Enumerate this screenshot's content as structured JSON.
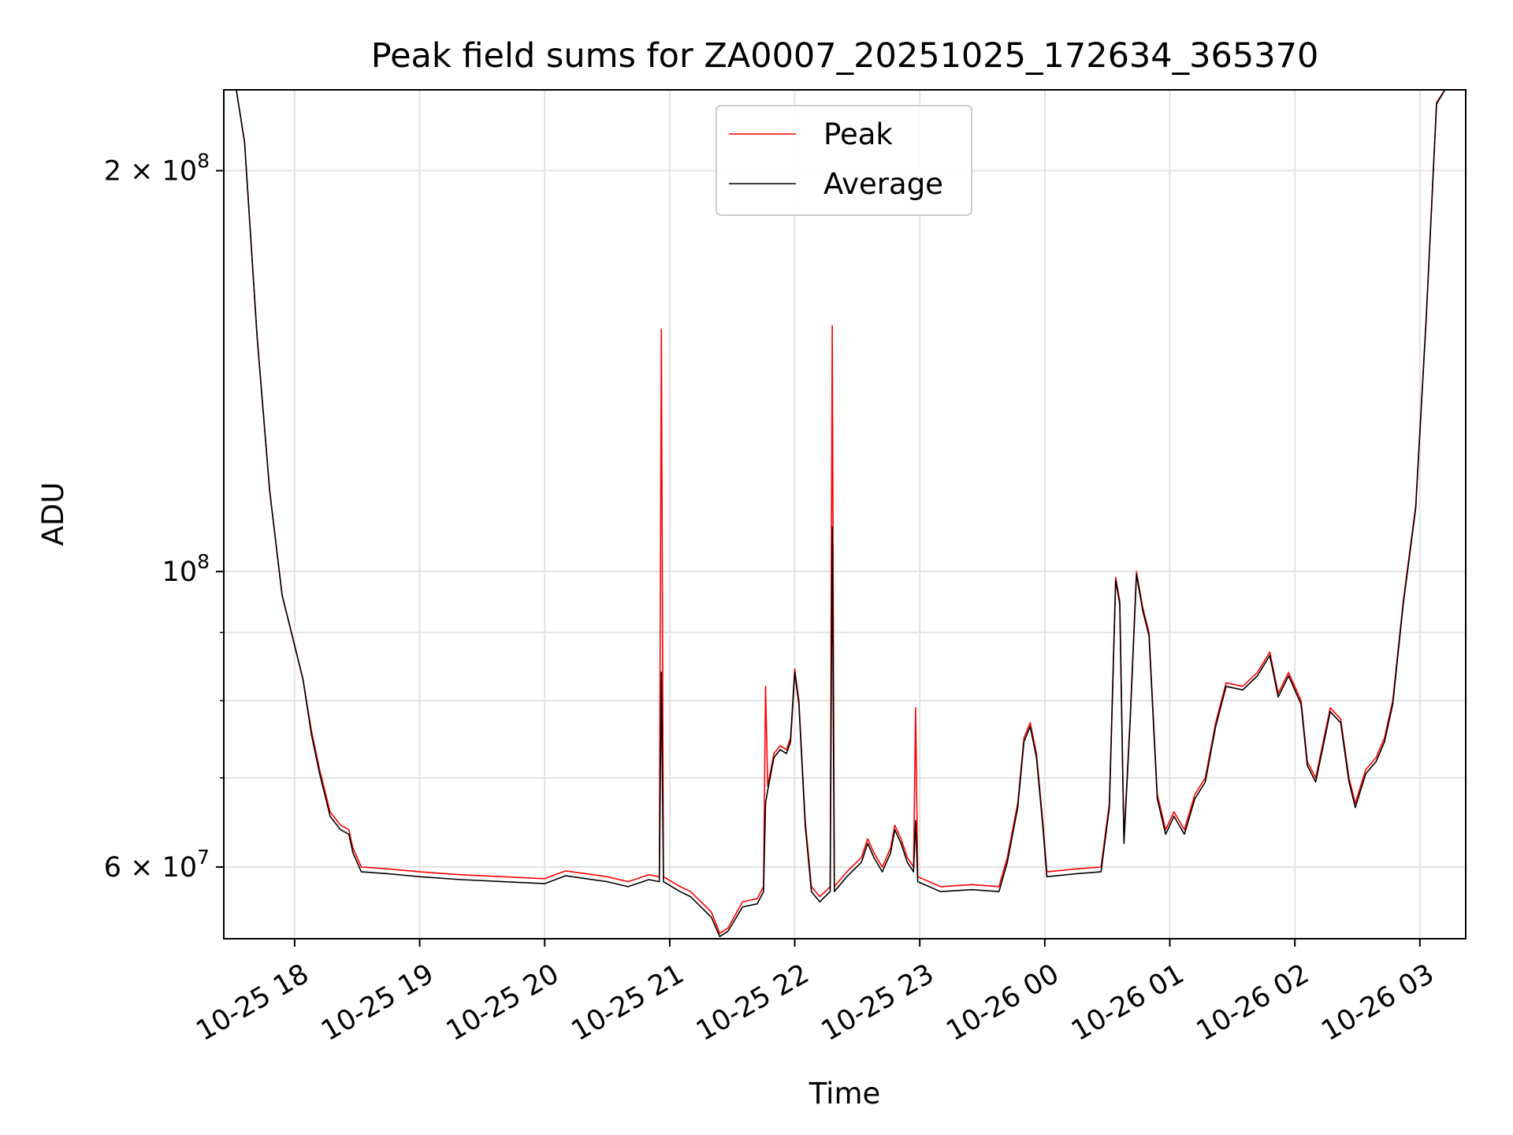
{
  "chart_data": {
    "type": "line",
    "title": "Peak field sums for ZA0007_20251025_172634_365370",
    "xlabel": "Time",
    "ylabel": "ADU",
    "yscale": "log",
    "ylim": [
      53000000,
      230000000
    ],
    "xlim": [
      "2025-10-25 17:26",
      "2025-10-26 03:22"
    ],
    "grid": true,
    "legend": {
      "placement": "top-center"
    },
    "x_ticks": [
      {
        "t": "2025-10-25 18:00",
        "label": "10-25 18"
      },
      {
        "t": "2025-10-25 19:00",
        "label": "10-25 19"
      },
      {
        "t": "2025-10-25 20:00",
        "label": "10-25 20"
      },
      {
        "t": "2025-10-25 21:00",
        "label": "10-25 21"
      },
      {
        "t": "2025-10-25 22:00",
        "label": "10-25 22"
      },
      {
        "t": "2025-10-25 23:00",
        "label": "10-25 23"
      },
      {
        "t": "2025-10-26 00:00",
        "label": "10-26 00"
      },
      {
        "t": "2025-10-26 01:00",
        "label": "10-26 01"
      },
      {
        "t": "2025-10-26 02:00",
        "label": "10-26 02"
      },
      {
        "t": "2025-10-26 03:00",
        "label": "10-26 03"
      }
    ],
    "y_ticks_major": [
      {
        "v": 60000000,
        "label": "6 × 10",
        "exp": "7"
      },
      {
        "v": 100000000,
        "label": "10",
        "exp": "8"
      },
      {
        "v": 200000000,
        "label": "2 × 10",
        "exp": "8"
      }
    ],
    "y_gridlines_minor": [
      70000000,
      80000000,
      90000000
    ],
    "series": [
      {
        "name": "Peak",
        "color": "#ff0000",
        "points": [
          [
            "2025-10-25 17:26",
            230000000
          ],
          [
            "2025-10-25 17:32",
            230000000
          ],
          [
            "2025-10-25 17:36",
            210000000
          ],
          [
            "2025-10-25 17:42",
            150000000
          ],
          [
            "2025-10-25 17:48",
            115000000
          ],
          [
            "2025-10-25 17:54",
            96000000
          ],
          [
            "2025-10-25 18:00",
            88000000
          ],
          [
            "2025-10-25 18:04",
            83000000
          ],
          [
            "2025-10-25 18:08",
            76000000
          ],
          [
            "2025-10-25 18:12",
            71000000
          ],
          [
            "2025-10-25 18:17",
            66000000
          ],
          [
            "2025-10-25 18:22",
            64500000
          ],
          [
            "2025-10-25 18:26",
            64000000
          ],
          [
            "2025-10-25 18:28",
            62000000
          ],
          [
            "2025-10-25 18:32",
            60000000
          ],
          [
            "2025-10-25 18:45",
            59800000
          ],
          [
            "2025-10-25 19:00",
            59500000
          ],
          [
            "2025-10-25 19:20",
            59200000
          ],
          [
            "2025-10-25 19:40",
            59000000
          ],
          [
            "2025-10-25 20:00",
            58800000
          ],
          [
            "2025-10-25 20:10",
            59600000
          ],
          [
            "2025-10-25 20:30",
            59000000
          ],
          [
            "2025-10-25 20:40",
            58500000
          ],
          [
            "2025-10-25 20:50",
            59200000
          ],
          [
            "2025-10-25 20:55",
            59000000
          ],
          [
            "2025-10-25 20:56",
            152000000
          ],
          [
            "2025-10-25 20:57",
            59000000
          ],
          [
            "2025-10-25 21:05",
            58000000
          ],
          [
            "2025-10-25 21:10",
            57500000
          ],
          [
            "2025-10-25 21:15",
            56500000
          ],
          [
            "2025-10-25 21:20",
            55500000
          ],
          [
            "2025-10-25 21:24",
            53500000
          ],
          [
            "2025-10-25 21:28",
            54000000
          ],
          [
            "2025-10-25 21:35",
            56500000
          ],
          [
            "2025-10-25 21:42",
            56800000
          ],
          [
            "2025-10-25 21:45",
            58000000
          ],
          [
            "2025-10-25 21:46",
            82000000
          ],
          [
            "2025-10-25 21:47",
            69000000
          ],
          [
            "2025-10-25 21:50",
            73000000
          ],
          [
            "2025-10-25 21:53",
            74000000
          ],
          [
            "2025-10-25 21:56",
            73500000
          ],
          [
            "2025-10-25 21:58",
            75000000
          ],
          [
            "2025-10-25 22:00",
            84500000
          ],
          [
            "2025-10-25 22:02",
            80000000
          ],
          [
            "2025-10-25 22:05",
            65000000
          ],
          [
            "2025-10-25 22:08",
            58000000
          ],
          [
            "2025-10-25 22:12",
            57000000
          ],
          [
            "2025-10-25 22:17",
            58000000
          ],
          [
            "2025-10-25 22:18",
            153000000
          ],
          [
            "2025-10-25 22:19",
            58000000
          ],
          [
            "2025-10-25 22:25",
            59500000
          ],
          [
            "2025-10-25 22:32",
            61000000
          ],
          [
            "2025-10-25 22:35",
            63000000
          ],
          [
            "2025-10-25 22:38",
            61500000
          ],
          [
            "2025-10-25 22:42",
            60000000
          ],
          [
            "2025-10-25 22:46",
            62000000
          ],
          [
            "2025-10-25 22:48",
            64500000
          ],
          [
            "2025-10-25 22:51",
            63000000
          ],
          [
            "2025-10-25 22:54",
            61000000
          ],
          [
            "2025-10-25 22:57",
            60000000
          ],
          [
            "2025-10-25 22:58",
            79000000
          ],
          [
            "2025-10-25 22:59",
            59000000
          ],
          [
            "2025-10-25 23:10",
            58000000
          ],
          [
            "2025-10-25 23:25",
            58200000
          ],
          [
            "2025-10-25 23:38",
            58000000
          ],
          [
            "2025-10-25 23:42",
            61000000
          ],
          [
            "2025-10-25 23:47",
            67000000
          ],
          [
            "2025-10-25 23:50",
            75000000
          ],
          [
            "2025-10-25 23:53",
            77000000
          ],
          [
            "2025-10-25 23:56",
            73000000
          ],
          [
            "2025-10-25 23:59",
            65000000
          ],
          [
            "2025-10-26 00:01",
            59500000
          ],
          [
            "2025-10-26 00:15",
            59800000
          ],
          [
            "2025-10-26 00:27",
            60000000
          ],
          [
            "2025-10-26 00:31",
            67000000
          ],
          [
            "2025-10-26 00:34",
            99000000
          ],
          [
            "2025-10-26 00:36",
            95000000
          ],
          [
            "2025-10-26 00:38",
            63000000
          ],
          [
            "2025-10-26 00:41",
            78000000
          ],
          [
            "2025-10-26 00:44",
            100000000
          ],
          [
            "2025-10-26 00:47",
            94000000
          ],
          [
            "2025-10-26 00:50",
            90000000
          ],
          [
            "2025-10-26 00:54",
            68000000
          ],
          [
            "2025-10-26 00:58",
            64000000
          ],
          [
            "2025-10-26 01:02",
            66000000
          ],
          [
            "2025-10-26 01:07",
            64000000
          ],
          [
            "2025-10-26 01:12",
            68000000
          ],
          [
            "2025-10-26 01:17",
            70000000
          ],
          [
            "2025-10-26 01:22",
            77000000
          ],
          [
            "2025-10-26 01:27",
            82500000
          ],
          [
            "2025-10-26 01:35",
            82000000
          ],
          [
            "2025-10-26 01:42",
            84000000
          ],
          [
            "2025-10-26 01:48",
            87000000
          ],
          [
            "2025-10-26 01:52",
            81000000
          ],
          [
            "2025-10-26 01:57",
            84000000
          ],
          [
            "2025-10-26 02:03",
            80000000
          ],
          [
            "2025-10-26 02:06",
            72000000
          ],
          [
            "2025-10-26 02:10",
            70000000
          ],
          [
            "2025-10-26 02:14",
            75000000
          ],
          [
            "2025-10-26 02:17",
            79000000
          ],
          [
            "2025-10-26 02:22",
            77500000
          ],
          [
            "2025-10-26 02:26",
            70000000
          ],
          [
            "2025-10-26 02:29",
            67000000
          ],
          [
            "2025-10-26 02:34",
            71000000
          ],
          [
            "2025-10-26 02:39",
            72500000
          ],
          [
            "2025-10-26 02:43",
            75000000
          ],
          [
            "2025-10-26 02:47",
            80000000
          ],
          [
            "2025-10-26 02:52",
            95000000
          ],
          [
            "2025-10-26 02:58",
            112000000
          ],
          [
            "2025-10-26 03:03",
            155000000
          ],
          [
            "2025-10-26 03:08",
            225000000
          ],
          [
            "2025-10-26 03:12",
            230000000
          ],
          [
            "2025-10-26 03:22",
            230000000
          ]
        ]
      },
      {
        "name": "Average",
        "color": "#000000",
        "points": [
          [
            "2025-10-25 17:26",
            230000000
          ],
          [
            "2025-10-25 17:32",
            230000000
          ],
          [
            "2025-10-25 17:36",
            210000000
          ],
          [
            "2025-10-25 17:42",
            150000000
          ],
          [
            "2025-10-25 17:48",
            115000000
          ],
          [
            "2025-10-25 17:54",
            96000000
          ],
          [
            "2025-10-25 18:00",
            88000000
          ],
          [
            "2025-10-25 18:04",
            83000000
          ],
          [
            "2025-10-25 18:08",
            75500000
          ],
          [
            "2025-10-25 18:12",
            70500000
          ],
          [
            "2025-10-25 18:17",
            65500000
          ],
          [
            "2025-10-25 18:22",
            64000000
          ],
          [
            "2025-10-25 18:26",
            63500000
          ],
          [
            "2025-10-25 18:28",
            61500000
          ],
          [
            "2025-10-25 18:32",
            59500000
          ],
          [
            "2025-10-25 18:45",
            59300000
          ],
          [
            "2025-10-25 19:00",
            59000000
          ],
          [
            "2025-10-25 19:20",
            58700000
          ],
          [
            "2025-10-25 19:40",
            58500000
          ],
          [
            "2025-10-25 20:00",
            58300000
          ],
          [
            "2025-10-25 20:10",
            59100000
          ],
          [
            "2025-10-25 20:30",
            58500000
          ],
          [
            "2025-10-25 20:40",
            58000000
          ],
          [
            "2025-10-25 20:50",
            58700000
          ],
          [
            "2025-10-25 20:55",
            58500000
          ],
          [
            "2025-10-25 20:56",
            84000000
          ],
          [
            "2025-10-25 20:57",
            58500000
          ],
          [
            "2025-10-25 21:05",
            57500000
          ],
          [
            "2025-10-25 21:10",
            57000000
          ],
          [
            "2025-10-25 21:15",
            56000000
          ],
          [
            "2025-10-25 21:20",
            55000000
          ],
          [
            "2025-10-25 21:24",
            53200000
          ],
          [
            "2025-10-25 21:28",
            53700000
          ],
          [
            "2025-10-25 21:35",
            56000000
          ],
          [
            "2025-10-25 21:42",
            56300000
          ],
          [
            "2025-10-25 21:45",
            57500000
          ],
          [
            "2025-10-25 21:46",
            67000000
          ],
          [
            "2025-10-25 21:47",
            68500000
          ],
          [
            "2025-10-25 21:50",
            72500000
          ],
          [
            "2025-10-25 21:53",
            73500000
          ],
          [
            "2025-10-25 21:56",
            73000000
          ],
          [
            "2025-10-25 21:58",
            74500000
          ],
          [
            "2025-10-25 22:00",
            84000000
          ],
          [
            "2025-10-25 22:02",
            79500000
          ],
          [
            "2025-10-25 22:05",
            64500000
          ],
          [
            "2025-10-25 22:08",
            57500000
          ],
          [
            "2025-10-25 22:12",
            56500000
          ],
          [
            "2025-10-25 22:17",
            57500000
          ],
          [
            "2025-10-25 22:18",
            108000000
          ],
          [
            "2025-10-25 22:19",
            57500000
          ],
          [
            "2025-10-25 22:25",
            59000000
          ],
          [
            "2025-10-25 22:32",
            60500000
          ],
          [
            "2025-10-25 22:35",
            62500000
          ],
          [
            "2025-10-25 22:38",
            61000000
          ],
          [
            "2025-10-25 22:42",
            59500000
          ],
          [
            "2025-10-25 22:46",
            61500000
          ],
          [
            "2025-10-25 22:48",
            64000000
          ],
          [
            "2025-10-25 22:51",
            62500000
          ],
          [
            "2025-10-25 22:54",
            60500000
          ],
          [
            "2025-10-25 22:57",
            59500000
          ],
          [
            "2025-10-25 22:58",
            65000000
          ],
          [
            "2025-10-25 22:59",
            58500000
          ],
          [
            "2025-10-25 23:10",
            57500000
          ],
          [
            "2025-10-25 23:25",
            57700000
          ],
          [
            "2025-10-25 23:38",
            57500000
          ],
          [
            "2025-10-25 23:42",
            60500000
          ],
          [
            "2025-10-25 23:47",
            66500000
          ],
          [
            "2025-10-25 23:50",
            74500000
          ],
          [
            "2025-10-25 23:53",
            76500000
          ],
          [
            "2025-10-25 23:56",
            72500000
          ],
          [
            "2025-10-25 23:59",
            64500000
          ],
          [
            "2025-10-26 00:01",
            59000000
          ],
          [
            "2025-10-26 00:15",
            59300000
          ],
          [
            "2025-10-26 00:27",
            59500000
          ],
          [
            "2025-10-26 00:31",
            66500000
          ],
          [
            "2025-10-26 00:34",
            98500000
          ],
          [
            "2025-10-26 00:36",
            94500000
          ],
          [
            "2025-10-26 00:38",
            62500000
          ],
          [
            "2025-10-26 00:41",
            77500000
          ],
          [
            "2025-10-26 00:44",
            99500000
          ],
          [
            "2025-10-26 00:47",
            93500000
          ],
          [
            "2025-10-26 00:50",
            89500000
          ],
          [
            "2025-10-26 00:54",
            67500000
          ],
          [
            "2025-10-26 00:58",
            63500000
          ],
          [
            "2025-10-26 01:02",
            65500000
          ],
          [
            "2025-10-26 01:07",
            63500000
          ],
          [
            "2025-10-26 01:12",
            67500000
          ],
          [
            "2025-10-26 01:17",
            69500000
          ],
          [
            "2025-10-26 01:22",
            76500000
          ],
          [
            "2025-10-26 01:27",
            82000000
          ],
          [
            "2025-10-26 01:35",
            81500000
          ],
          [
            "2025-10-26 01:42",
            83500000
          ],
          [
            "2025-10-26 01:48",
            86500000
          ],
          [
            "2025-10-26 01:52",
            80500000
          ],
          [
            "2025-10-26 01:57",
            83500000
          ],
          [
            "2025-10-26 02:03",
            79500000
          ],
          [
            "2025-10-26 02:06",
            71500000
          ],
          [
            "2025-10-26 02:10",
            69500000
          ],
          [
            "2025-10-26 02:14",
            74500000
          ],
          [
            "2025-10-26 02:17",
            78500000
          ],
          [
            "2025-10-26 02:22",
            77000000
          ],
          [
            "2025-10-26 02:26",
            69500000
          ],
          [
            "2025-10-26 02:29",
            66500000
          ],
          [
            "2025-10-26 02:34",
            70500000
          ],
          [
            "2025-10-26 02:39",
            72000000
          ],
          [
            "2025-10-26 02:43",
            74500000
          ],
          [
            "2025-10-26 02:47",
            79500000
          ],
          [
            "2025-10-26 02:52",
            94500000
          ],
          [
            "2025-10-26 02:58",
            111500000
          ],
          [
            "2025-10-26 03:03",
            154500000
          ],
          [
            "2025-10-26 03:08",
            224500000
          ],
          [
            "2025-10-26 03:12",
            230000000
          ],
          [
            "2025-10-26 03:22",
            230000000
          ]
        ]
      }
    ]
  }
}
